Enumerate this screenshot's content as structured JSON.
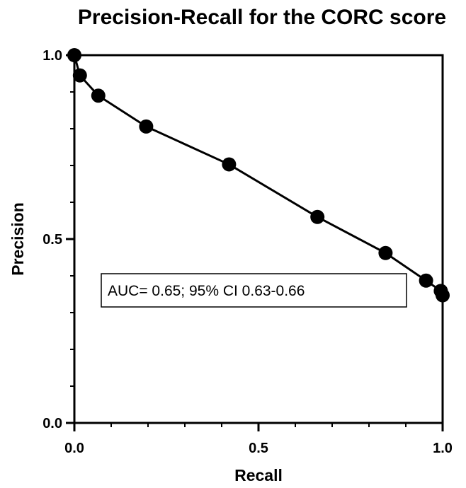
{
  "chart_data": {
    "type": "line",
    "title": "Precision-Recall for the CORC score",
    "xlabel": "Recall",
    "ylabel": "Precision",
    "xlim": [
      0,
      1
    ],
    "ylim": [
      0,
      1
    ],
    "xticks": [
      "0.0",
      "0.5",
      "1.0"
    ],
    "yticks": [
      "0.0",
      "0.5",
      "1.0"
    ],
    "grid": false,
    "markers": true,
    "annotation": "AUC= 0.65; 95% CI 0.63-0.66",
    "series": [
      {
        "x": [
          0.0,
          0.015,
          0.065,
          0.195,
          0.42,
          0.66,
          0.845,
          0.955,
          0.995,
          1.0
        ],
        "y": [
          1.0,
          0.945,
          0.89,
          0.806,
          0.703,
          0.56,
          0.462,
          0.387,
          0.359,
          0.347
        ]
      }
    ]
  },
  "colors": {
    "line": "#000000",
    "marker": "#000000",
    "axis": "#000000"
  }
}
